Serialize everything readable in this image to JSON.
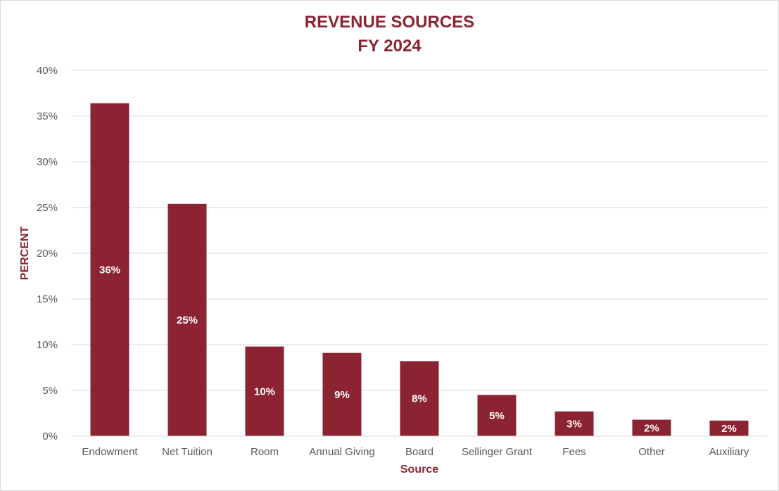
{
  "chart_data": {
    "type": "bar",
    "title_line1": "REVENUE SOURCES",
    "title_line2": "FY 2024",
    "xlabel": "Source",
    "ylabel": "PERCENT",
    "categories": [
      "Endowment",
      "Net Tuition",
      "Room",
      "Annual Giving",
      "Board",
      "Sellinger Grant",
      "Fees",
      "Other",
      "Auxiliary"
    ],
    "values": [
      36.4,
      25.4,
      9.8,
      9.1,
      8.2,
      4.5,
      2.7,
      1.8,
      1.7
    ],
    "data_labels": [
      "36%",
      "25%",
      "10%",
      "9%",
      "8%",
      "5%",
      "3%",
      "2%",
      "2%"
    ],
    "yticks": [
      "0%",
      "5%",
      "10%",
      "15%",
      "20%",
      "25%",
      "30%",
      "35%",
      "40%"
    ],
    "ylim": [
      0,
      40
    ],
    "grid": true,
    "legend": "none",
    "bar_color": "#8b2332"
  }
}
